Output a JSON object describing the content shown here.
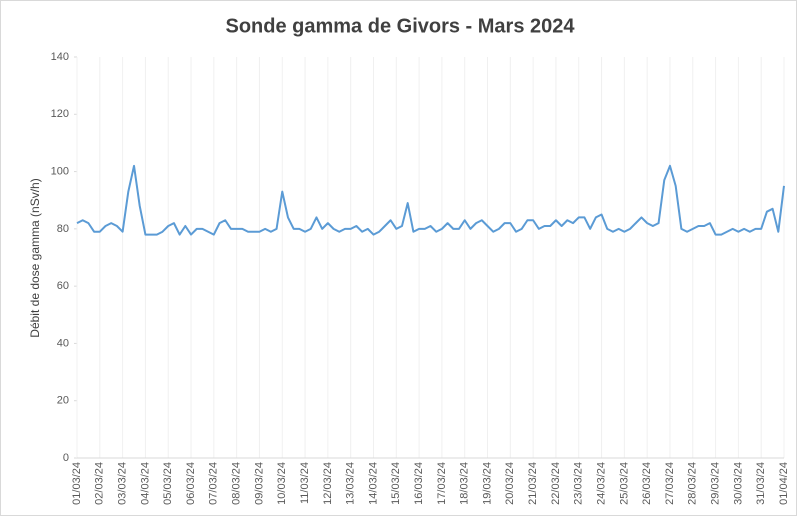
{
  "chart_data": {
    "type": "line",
    "title": "Sonde gamma de Givors - Mars 2024",
    "y_label": "Débit de dose gamma (nSv/h)",
    "categories": [
      "01/03/24",
      null,
      null,
      null,
      "02/03/24",
      null,
      null,
      null,
      "03/03/24",
      null,
      null,
      null,
      "04/03/24",
      null,
      null,
      null,
      "05/03/24",
      null,
      null,
      null,
      "06/03/24",
      null,
      null,
      null,
      "07/03/24",
      null,
      null,
      null,
      "08/03/24",
      null,
      null,
      null,
      "09/03/24",
      null,
      null,
      null,
      "10/03/24",
      null,
      null,
      null,
      "11/03/24",
      null,
      null,
      null,
      "12/03/24",
      null,
      null,
      null,
      "13/03/24",
      null,
      null,
      null,
      "14/03/24",
      null,
      null,
      null,
      "15/03/24",
      null,
      null,
      null,
      "16/03/24",
      null,
      null,
      null,
      "17/03/24",
      null,
      null,
      null,
      "18/03/24",
      null,
      null,
      null,
      "19/03/24",
      null,
      null,
      null,
      "20/03/24",
      null,
      null,
      null,
      "21/03/24",
      null,
      null,
      null,
      "22/03/24",
      null,
      null,
      null,
      "23/03/24",
      null,
      null,
      null,
      "24/03/24",
      null,
      null,
      null,
      "25/03/24",
      null,
      null,
      null,
      "26/03/24",
      null,
      null,
      null,
      "27/03/24",
      null,
      null,
      null,
      "28/03/24",
      null,
      null,
      null,
      "29/03/24",
      null,
      null,
      null,
      "30/03/24",
      null,
      null,
      null,
      "31/03/24",
      null,
      null,
      null,
      "01/04/24"
    ],
    "series": [
      {
        "color": "#5b9bd5",
        "values": [
          82,
          83,
          82,
          79,
          79,
          81,
          82,
          81,
          79,
          93,
          102,
          88,
          78,
          78,
          78,
          79,
          81,
          82,
          78,
          81,
          78,
          80,
          80,
          79,
          78,
          82,
          83,
          80,
          80,
          80,
          79,
          79,
          79,
          80,
          79,
          80,
          93,
          84,
          80,
          80,
          79,
          80,
          84,
          80,
          82,
          80,
          79,
          80,
          80,
          81,
          79,
          80,
          78,
          79,
          81,
          83,
          80,
          81,
          89,
          79,
          80,
          80,
          81,
          79,
          80,
          82,
          80,
          80,
          83,
          80,
          82,
          83,
          81,
          79,
          80,
          82,
          82,
          79,
          80,
          83,
          83,
          80,
          81,
          81,
          83,
          81,
          83,
          82,
          84,
          84,
          80,
          84,
          85,
          80,
          79,
          80,
          79,
          80,
          82,
          84,
          82,
          81,
          82,
          97,
          102,
          95,
          80,
          79,
          80,
          81,
          81,
          82,
          78,
          78,
          79,
          80,
          79,
          80,
          79,
          80,
          80,
          86,
          87,
          79,
          95
        ]
      }
    ],
    "ylim": [
      0,
      140
    ],
    "yticks": [
      0,
      20,
      40,
      60,
      80,
      100,
      120,
      140
    ],
    "xgrid": true
  }
}
